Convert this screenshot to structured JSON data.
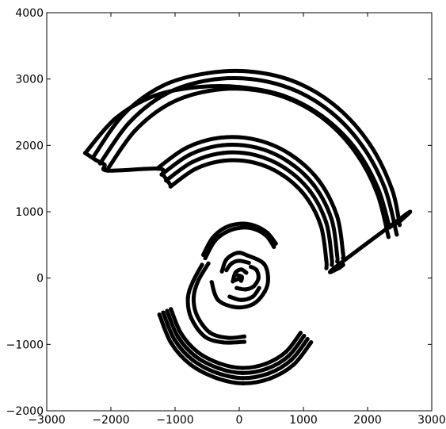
{
  "chart_data": {
    "type": "scatter",
    "title": "",
    "xlabel": "",
    "ylabel": "",
    "xlim": [
      -3000,
      3000
    ],
    "ylim": [
      -2000,
      4000
    ],
    "x_ticks": [
      -3000,
      -2000,
      -1000,
      0,
      1000,
      2000,
      3000
    ],
    "y_ticks": [
      -2000,
      -1000,
      0,
      1000,
      2000,
      3000,
      4000
    ],
    "x_tick_labels": [
      "−3000",
      "−2000",
      "−1000",
      "0",
      "1000",
      "2000",
      "3000"
    ],
    "y_tick_labels": [
      "−2000",
      "−1000",
      "0",
      "1000",
      "2000",
      "3000",
      "4000"
    ],
    "grid": false,
    "legend": "none",
    "marker_color": "#000000",
    "series": [
      {
        "values": [
          [
            -2400,
            1885
          ],
          [
            -1928,
            2407
          ],
          [
            -1328,
            2745
          ],
          [
            -668,
            2876
          ],
          [
            0,
            2880
          ],
          [
            687,
            2750
          ],
          [
            1293,
            2440
          ],
          [
            1796,
            1969
          ],
          [
            2154,
            1370
          ],
          [
            2342,
            764
          ]
        ]
      },
      {
        "values": [
          [
            -2280,
            1817
          ],
          [
            -1800,
            2470
          ],
          [
            -1190,
            2900
          ],
          [
            -500,
            3088
          ],
          [
            202,
            3110
          ],
          [
            900,
            2946
          ],
          [
            1530,
            2570
          ],
          [
            2040,
            2010
          ],
          [
            2380,
            1340
          ],
          [
            2500,
            800
          ]
        ]
      },
      {
        "values": [
          [
            -2168,
            1728
          ],
          [
            -1715,
            2344
          ],
          [
            -1145,
            2775
          ],
          [
            -499,
            2979
          ],
          [
            175,
            3001
          ],
          [
            845,
            2839
          ],
          [
            1443,
            2491
          ],
          [
            1926,
            1981
          ],
          [
            2270,
            1351
          ],
          [
            2455,
            655
          ]
        ]
      },
      {
        "values": [
          [
            -2054,
            1637
          ],
          [
            -1626,
            2220
          ],
          [
            -1084,
            2629
          ],
          [
            -473,
            2822
          ],
          [
            166,
            2843
          ],
          [
            800,
            2690
          ],
          [
            1367,
            2360
          ],
          [
            1825,
            1877
          ],
          [
            2150,
            1280
          ],
          [
            2326,
            620
          ]
        ]
      },
      {
        "values": [
          [
            -1280,
            1650
          ],
          [
            -815,
            1968
          ],
          [
            -280,
            2118
          ],
          [
            277,
            2082
          ],
          [
            795,
            1865
          ],
          [
            1232,
            1480
          ],
          [
            1521,
            945
          ],
          [
            1617,
            380
          ],
          [
            1618,
            300
          ]
        ]
      },
      {
        "values": [
          [
            -1210,
            1560
          ],
          [
            -770,
            1860
          ],
          [
            -265,
            2002
          ],
          [
            262,
            1968
          ],
          [
            751,
            1763
          ],
          [
            1164,
            1399
          ],
          [
            1437,
            893
          ],
          [
            1525,
            350
          ],
          [
            1528,
            250
          ]
        ]
      },
      {
        "values": [
          [
            -1140,
            1470
          ],
          [
            -725,
            1752
          ],
          [
            -249,
            1886
          ],
          [
            247,
            1854
          ],
          [
            707,
            1661
          ],
          [
            1097,
            1318
          ],
          [
            1354,
            841
          ],
          [
            1440,
            320
          ],
          [
            1443,
            200
          ]
        ]
      },
      {
        "values": [
          [
            -1070,
            1380
          ],
          [
            -681,
            1645
          ],
          [
            -234,
            1770
          ],
          [
            232,
            1740
          ],
          [
            664,
            1559
          ],
          [
            1030,
            1237
          ],
          [
            1271,
            790
          ],
          [
            1355,
            280
          ],
          [
            1358,
            150
          ]
        ]
      },
      {
        "values": [
          [
            -2400,
            1885
          ],
          [
            -2240,
            1782
          ],
          [
            -2100,
            1710
          ],
          [
            -2050,
            1620
          ],
          [
            -1260,
            1650
          ],
          [
            -1190,
            1560
          ],
          [
            -1120,
            1470
          ],
          [
            -1060,
            1390
          ]
        ]
      },
      {
        "values": [
          [
            2342,
            764
          ],
          [
            2450,
            830
          ],
          [
            2520,
            870
          ],
          [
            2600,
            960
          ],
          [
            1480,
            150
          ],
          [
            1550,
            150
          ],
          [
            1620,
            200
          ]
        ]
      },
      {
        "values": [
          [
            -1245,
            -550
          ],
          [
            -1060,
            -980
          ],
          [
            -760,
            -1303
          ],
          [
            -360,
            -1505
          ],
          [
            61,
            -1586
          ],
          [
            481,
            -1513
          ],
          [
            847,
            -1306
          ],
          [
            1120,
            -968
          ]
        ]
      },
      {
        "values": [
          [
            -1185,
            -520
          ],
          [
            -1008,
            -930
          ],
          [
            -723,
            -1238
          ],
          [
            -343,
            -1431
          ],
          [
            58,
            -1507
          ],
          [
            457,
            -1438
          ],
          [
            805,
            -1240
          ],
          [
            1064,
            -920
          ]
        ]
      },
      {
        "values": [
          [
            -1125,
            -495
          ],
          [
            -957,
            -883
          ],
          [
            -687,
            -1176
          ],
          [
            -325,
            -1358
          ],
          [
            55,
            -1431
          ],
          [
            434,
            -1365
          ],
          [
            765,
            -1178
          ],
          [
            1010,
            -872
          ]
        ]
      },
      {
        "values": [
          [
            -1065,
            -468
          ],
          [
            -906,
            -835
          ],
          [
            -650,
            -1113
          ],
          [
            -308,
            -1286
          ],
          [
            52,
            -1355
          ],
          [
            411,
            -1292
          ],
          [
            724,
            -1115
          ],
          [
            956,
            -826
          ]
        ]
      },
      {
        "values": [
          [
            -560,
            350
          ],
          [
            -420,
            600
          ],
          [
            -220,
            760
          ],
          [
            20,
            820
          ],
          [
            240,
            790
          ],
          [
            440,
            680
          ],
          [
            570,
            520
          ]
        ]
      },
      {
        "values": [
          [
            -530,
            300
          ],
          [
            -380,
            560
          ],
          [
            -190,
            700
          ],
          [
            30,
            760
          ],
          [
            250,
            735
          ],
          [
            430,
            630
          ],
          [
            540,
            470
          ]
        ]
      },
      {
        "values": [
          [
            -580,
            200
          ],
          [
            -720,
            -50
          ],
          [
            -800,
            -300
          ],
          [
            -750,
            -600
          ],
          [
            -540,
            -880
          ],
          [
            -250,
            -970
          ],
          [
            80,
            -960
          ]
        ]
      },
      {
        "values": [
          [
            -480,
            220
          ],
          [
            -640,
            -40
          ],
          [
            -710,
            -290
          ],
          [
            -660,
            -560
          ],
          [
            -460,
            -820
          ],
          [
            -180,
            -900
          ],
          [
            80,
            -880
          ]
        ]
      },
      {
        "values": [
          [
            -270,
            100
          ],
          [
            -200,
            280
          ],
          [
            -30,
            380
          ],
          [
            130,
            340
          ],
          [
            380,
            220
          ],
          [
            450,
            0
          ],
          [
            400,
            -200
          ],
          [
            220,
            -390
          ],
          [
            -50,
            -440
          ],
          [
            -330,
            -330
          ],
          [
            -430,
            -60
          ]
        ]
      },
      {
        "values": [
          [
            -200,
            120
          ],
          [
            -120,
            220
          ],
          [
            0,
            260
          ],
          [
            150,
            230
          ]
        ]
      },
      {
        "values": [
          [
            -100,
            -50
          ],
          [
            -60,
            80
          ],
          [
            30,
            130
          ],
          [
            110,
            80
          ]
        ]
      },
      {
        "values": [
          [
            -40,
            -150
          ],
          [
            100,
            -170
          ],
          [
            230,
            -120
          ],
          [
            300,
            0
          ],
          [
            270,
            120
          ],
          [
            180,
            170
          ]
        ]
      },
      {
        "values": [
          [
            -60,
            -30
          ],
          [
            0,
            -10
          ],
          [
            30,
            -40
          ],
          [
            40,
            20
          ],
          [
            -20,
            40
          ]
        ]
      },
      {
        "values": [
          [
            -150,
            -280
          ],
          [
            30,
            -330
          ],
          [
            210,
            -280
          ],
          [
            310,
            -150
          ]
        ]
      }
    ]
  }
}
